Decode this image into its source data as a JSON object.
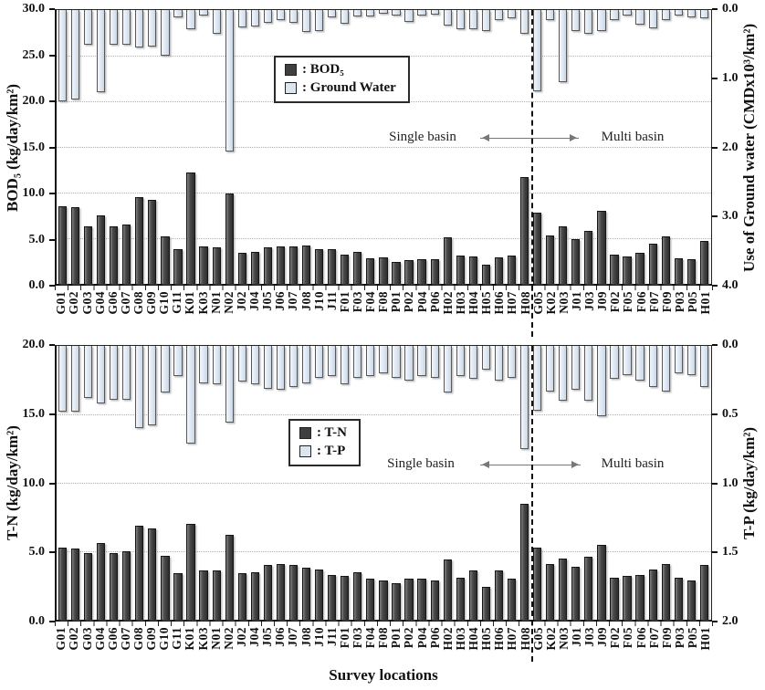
{
  "figure": {
    "xlabel": "Survey locations",
    "divider_after_category": "H08",
    "single_basin_label": "Single basin",
    "multi_basin_label": "Multi basin"
  },
  "colors": {
    "dark_bar": "#3f3f3f",
    "light_bar": "#dce6f1",
    "grid": "#b0b0b0",
    "axis": "#111111"
  },
  "chart_data": [
    {
      "type": "bar",
      "panel": "top",
      "title": "",
      "grid": true,
      "gridlines": [
        5,
        10,
        15,
        20,
        25
      ],
      "divider_index": 37,
      "categories": [
        "G01",
        "G02",
        "G03",
        "G04",
        "G06",
        "G07",
        "G08",
        "G09",
        "G10",
        "G11",
        "K01",
        "K03",
        "N01",
        "N02",
        "J02",
        "J04",
        "J05",
        "J06",
        "J07",
        "J08",
        "J10",
        "J11",
        "F01",
        "F03",
        "F04",
        "F08",
        "P01",
        "P02",
        "P04",
        "P06",
        "H02",
        "H03",
        "H04",
        "H05",
        "H06",
        "H07",
        "H08",
        "G05",
        "K02",
        "N03",
        "J01",
        "J03",
        "J09",
        "F02",
        "F05",
        "F06",
        "F07",
        "F09",
        "P03",
        "P05",
        "H01"
      ],
      "series": [
        {
          "name": "BOD5",
          "axis": "left",
          "style": "dark",
          "values": [
            8.5,
            8.4,
            6.3,
            7.5,
            6.3,
            6.5,
            9.5,
            9.2,
            5.2,
            3.8,
            12.2,
            4.1,
            4.0,
            9.9,
            3.4,
            3.5,
            4.0,
            4.1,
            4.1,
            4.2,
            3.8,
            3.8,
            3.2,
            3.5,
            2.8,
            2.9,
            2.4,
            2.6,
            2.7,
            2.7,
            5.1,
            3.1,
            3.0,
            2.1,
            2.9,
            3.1,
            11.7,
            7.8,
            5.3,
            6.3,
            4.9,
            5.8,
            8.0,
            3.2,
            3.0,
            3.4,
            4.4,
            5.2,
            2.8,
            2.7,
            4.7
          ]
        },
        {
          "name": "Ground Water",
          "axis": "right",
          "style": "light",
          "values": [
            1.33,
            1.3,
            0.5,
            1.2,
            0.5,
            0.5,
            0.55,
            0.53,
            0.67,
            0.11,
            0.28,
            0.08,
            0.35,
            2.07,
            0.25,
            0.24,
            0.18,
            0.15,
            0.18,
            0.32,
            0.31,
            0.11,
            0.2,
            0.09,
            0.09,
            0.05,
            0.08,
            0.17,
            0.08,
            0.07,
            0.23,
            0.28,
            0.28,
            0.3,
            0.14,
            0.12,
            0.35,
            1.18,
            0.14,
            1.05,
            0.3,
            0.35,
            0.3,
            0.14,
            0.08,
            0.21,
            0.26,
            0.14,
            0.08,
            0.1,
            0.12
          ]
        }
      ],
      "left_axis": {
        "label": "BOD₅ (kg/day/km²)",
        "min": 0,
        "max": 30,
        "ticks": [
          0,
          5,
          10,
          15,
          20,
          25,
          30
        ]
      },
      "right_axis": {
        "label": "Use  of Ground water (CMDx10³/km²)",
        "min": 0,
        "max": 4,
        "direction": "inverted-zero-at-top",
        "ticks": [
          0,
          1,
          2,
          3,
          4
        ]
      },
      "legend": [
        {
          "swatch": "dark",
          "label": ": BOD₅"
        },
        {
          "swatch": "light",
          "label": ": Ground Water"
        }
      ],
      "annotations": {
        "left": "Single basin",
        "right": "Multi basin"
      }
    },
    {
      "type": "bar",
      "panel": "bottom",
      "title": "",
      "grid": true,
      "gridlines": [
        5,
        10,
        15
      ],
      "divider_index": 37,
      "categories": [
        "G01",
        "G02",
        "G03",
        "G04",
        "G06",
        "G07",
        "G08",
        "G09",
        "G10",
        "G11",
        "K01",
        "K03",
        "N01",
        "N02",
        "J02",
        "J04",
        "J05",
        "J06",
        "J07",
        "J08",
        "J10",
        "J11",
        "F01",
        "F03",
        "F04",
        "F08",
        "P01",
        "P02",
        "P04",
        "P06",
        "H02",
        "H03",
        "H04",
        "H05",
        "H06",
        "H07",
        "H08",
        "G05",
        "K02",
        "N03",
        "J01",
        "J03",
        "J09",
        "F02",
        "F05",
        "F06",
        "F07",
        "F09",
        "P03",
        "P05",
        "H01"
      ],
      "series": [
        {
          "name": "T-N",
          "axis": "left",
          "style": "dark",
          "values": [
            5.3,
            5.2,
            4.9,
            5.6,
            4.9,
            5.0,
            6.9,
            6.7,
            4.7,
            3.4,
            7.0,
            3.6,
            3.6,
            6.2,
            3.4,
            3.5,
            4.0,
            4.1,
            4.0,
            3.8,
            3.7,
            3.3,
            3.2,
            3.5,
            3.0,
            2.9,
            2.7,
            3.0,
            3.0,
            2.9,
            4.4,
            3.1,
            3.6,
            2.4,
            3.6,
            3.0,
            8.5,
            5.3,
            4.1,
            4.5,
            3.9,
            4.6,
            5.5,
            3.1,
            3.2,
            3.3,
            3.7,
            4.1,
            3.1,
            2.9,
            4.0
          ]
        },
        {
          "name": "T-P",
          "axis": "right",
          "style": "light",
          "values": [
            0.48,
            0.48,
            0.38,
            0.42,
            0.39,
            0.39,
            0.6,
            0.58,
            0.34,
            0.22,
            0.71,
            0.27,
            0.28,
            0.56,
            0.26,
            0.28,
            0.31,
            0.32,
            0.3,
            0.27,
            0.23,
            0.22,
            0.28,
            0.23,
            0.22,
            0.2,
            0.23,
            0.25,
            0.22,
            0.23,
            0.34,
            0.22,
            0.24,
            0.17,
            0.25,
            0.23,
            0.75,
            0.47,
            0.33,
            0.4,
            0.32,
            0.4,
            0.51,
            0.24,
            0.21,
            0.25,
            0.3,
            0.33,
            0.2,
            0.21,
            0.3
          ]
        }
      ],
      "left_axis": {
        "label": "T-N (kg/day/km²)",
        "min": 0,
        "max": 20,
        "ticks": [
          0,
          5,
          10,
          15,
          20
        ]
      },
      "right_axis": {
        "label": "T-P (kg/day/km²)",
        "min": 0,
        "max": 2,
        "direction": "inverted-zero-at-top",
        "ticks": [
          0,
          0.5,
          1,
          1.5,
          2
        ]
      },
      "legend": [
        {
          "swatch": "dark",
          "label": ": T-N"
        },
        {
          "swatch": "light",
          "label": ": T-P"
        }
      ],
      "annotations": {
        "left": "Single basin",
        "right": "Multi basin"
      }
    }
  ]
}
